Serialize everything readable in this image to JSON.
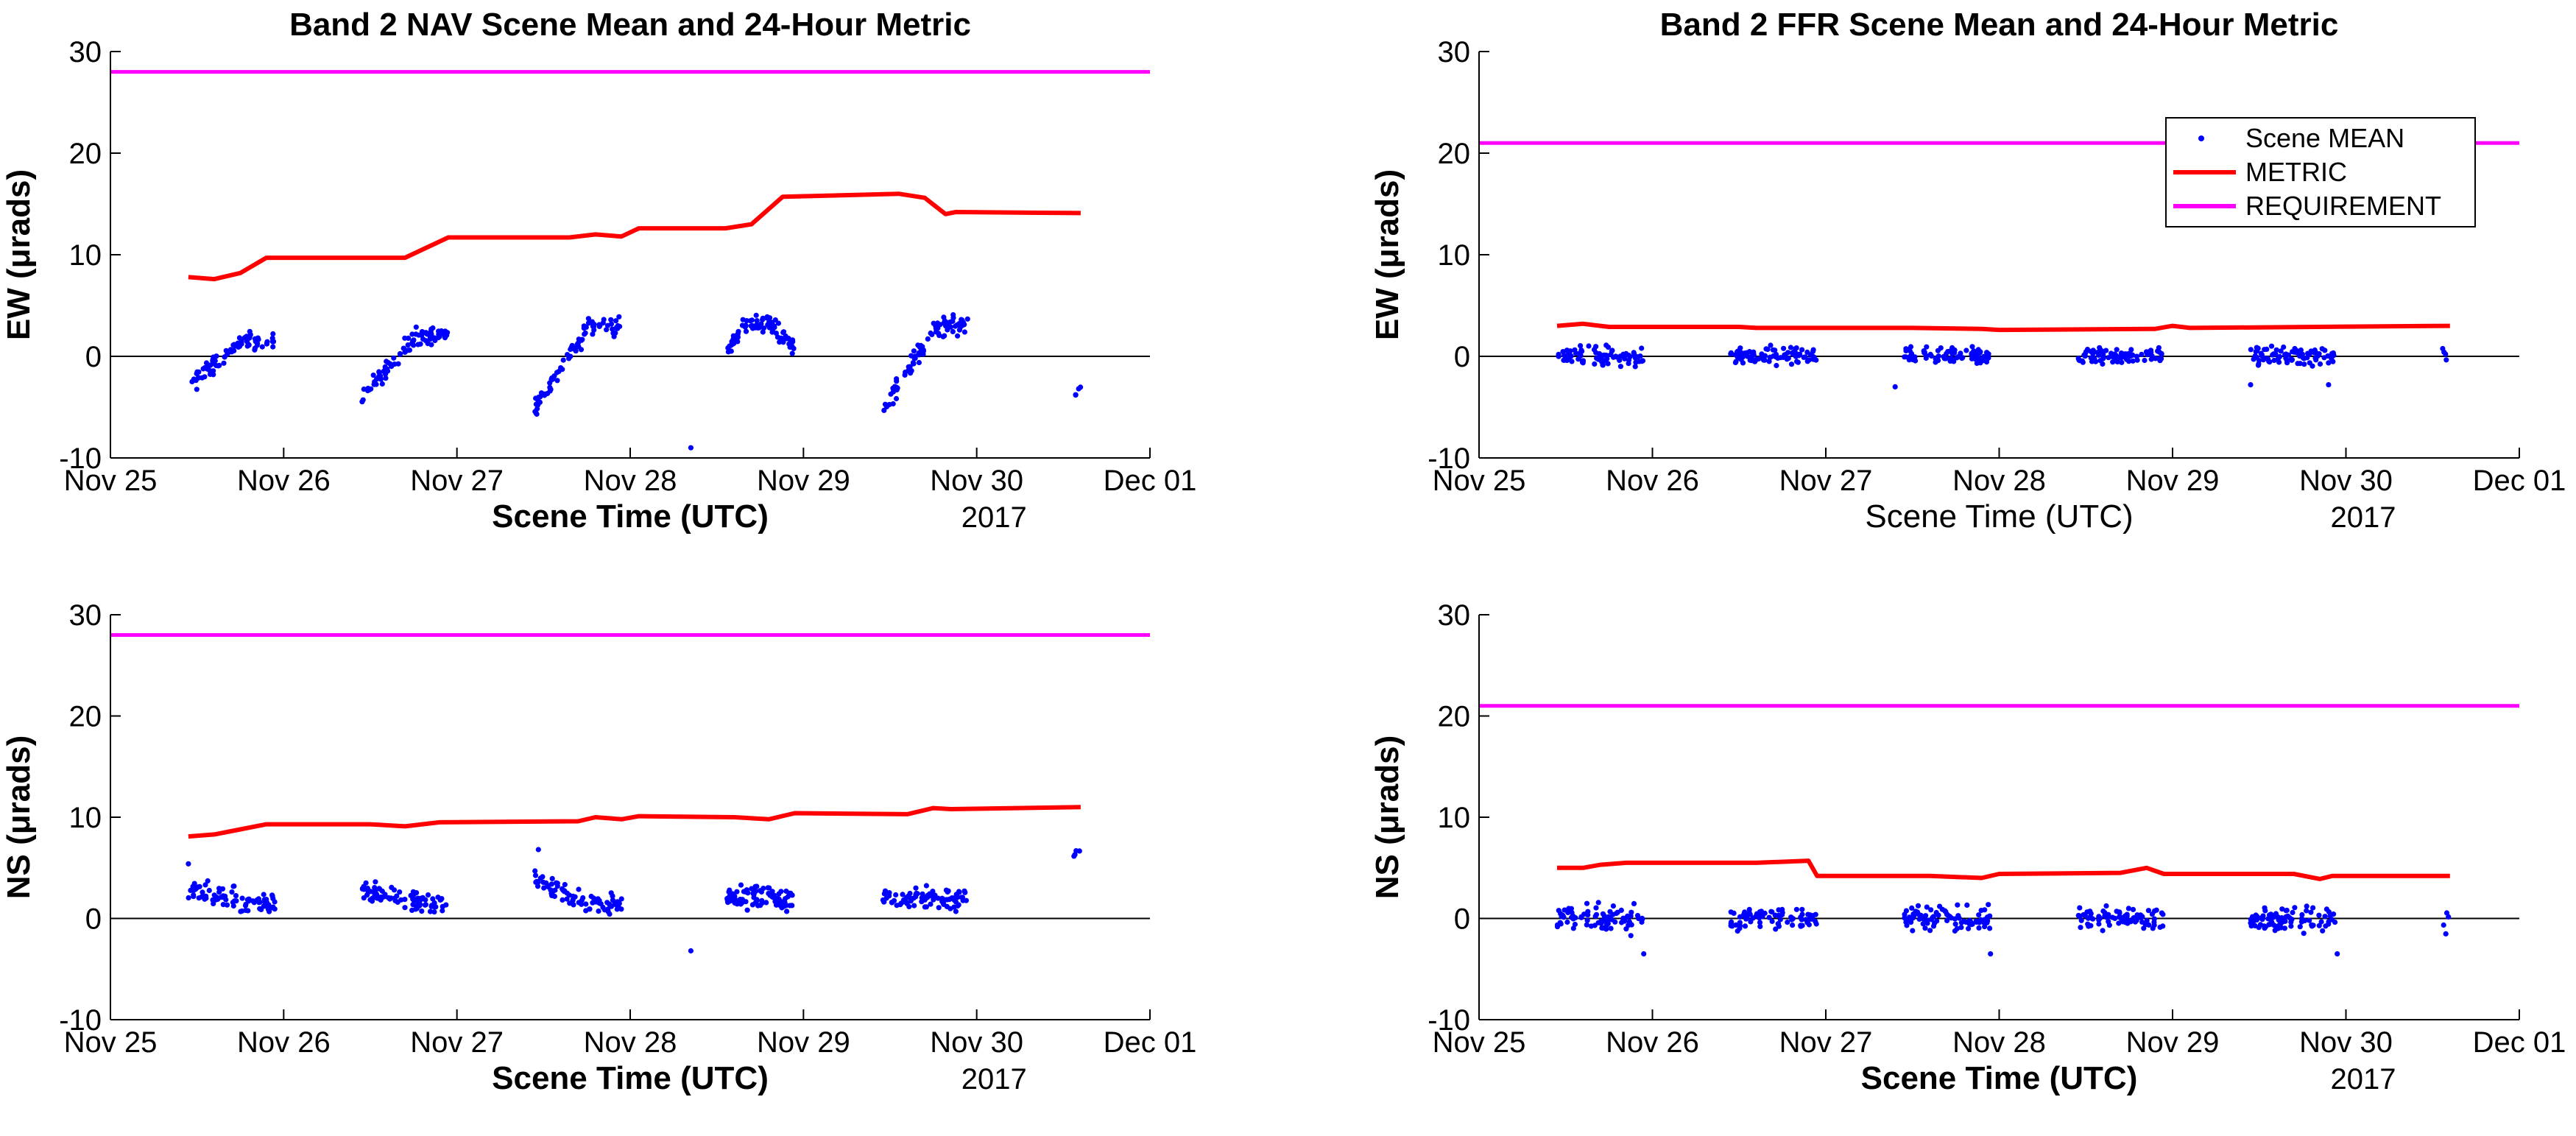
{
  "colors": {
    "mean": "#0000ff",
    "metric": "#ff0000",
    "requirement": "#ff00ff",
    "axis": "#000000"
  },
  "chart_data": [
    {
      "id": "nav-ew",
      "type": "line",
      "title": "Band 2 NAV Scene Mean and 24-Hour Metric",
      "xlabel": "Scene Time (UTC)",
      "xlabel_bold": true,
      "ylabel": "EW (μrads)",
      "year_label": "2017",
      "x_ticks": [
        "Nov 25",
        "Nov 26",
        "Nov 27",
        "Nov 28",
        "Nov 29",
        "Nov 30",
        "Dec 01"
      ],
      "xlim_days": [
        0,
        6
      ],
      "ylim": [
        -10,
        30
      ],
      "y_ticks": [
        -10,
        0,
        10,
        20,
        30
      ],
      "requirement": 28,
      "metric": [
        [
          0.45,
          7.8
        ],
        [
          0.6,
          7.6
        ],
        [
          0.75,
          8.2
        ],
        [
          0.9,
          9.7
        ],
        [
          1.7,
          9.7
        ],
        [
          1.95,
          11.7
        ],
        [
          2.65,
          11.7
        ],
        [
          2.8,
          12.0
        ],
        [
          2.95,
          11.8
        ],
        [
          3.05,
          12.6
        ],
        [
          3.55,
          12.6
        ],
        [
          3.7,
          13.0
        ],
        [
          3.88,
          15.7
        ],
        [
          4.55,
          16.0
        ],
        [
          4.7,
          15.6
        ],
        [
          4.82,
          14.0
        ],
        [
          4.88,
          14.2
        ],
        [
          5.6,
          14.1
        ]
      ],
      "scene_clusters": [
        {
          "start": 0.45,
          "end": 0.95,
          "y0": -3.0,
          "y1": 1.5,
          "mode": "rise",
          "spread": 0.9
        },
        {
          "start": 1.45,
          "end": 1.95,
          "y0": -4.0,
          "y1": 2.0,
          "mode": "rise",
          "spread": 0.9
        },
        {
          "start": 2.45,
          "end": 2.95,
          "y0": -5.0,
          "y1": 3.0,
          "mode": "rise",
          "spread": 1.0
        },
        {
          "start": 3.55,
          "end": 3.95,
          "y0": 0.5,
          "y1": 3.0,
          "mode": "hump",
          "spread": 0.9
        },
        {
          "start": 4.45,
          "end": 4.95,
          "y0": -5.5,
          "y1": 3.0,
          "mode": "rise",
          "spread": 1.0
        },
        {
          "start": 5.56,
          "end": 5.6,
          "y0": -4.0,
          "y1": -3.0,
          "mode": "flat",
          "spread": 0.4
        }
      ],
      "scene_outliers": [
        [
          3.35,
          -9.0
        ]
      ],
      "legend": null
    },
    {
      "id": "ffr-ew",
      "type": "line",
      "title": "Band 2 FFR Scene Mean and 24-Hour Metric",
      "xlabel": "Scene Time (UTC)",
      "xlabel_bold": false,
      "ylabel": "EW (μrads)",
      "year_label": "2017",
      "x_ticks": [
        "Nov 25",
        "Nov 26",
        "Nov 27",
        "Nov 28",
        "Nov 29",
        "Nov 30",
        "Dec 01"
      ],
      "xlim_days": [
        0,
        6
      ],
      "ylim": [
        -10,
        30
      ],
      "y_ticks": [
        -10,
        0,
        10,
        20,
        30
      ],
      "requirement": 21,
      "metric": [
        [
          0.45,
          3.0
        ],
        [
          0.6,
          3.2
        ],
        [
          0.75,
          2.9
        ],
        [
          1.5,
          2.9
        ],
        [
          1.6,
          2.8
        ],
        [
          2.5,
          2.8
        ],
        [
          2.9,
          2.7
        ],
        [
          3.0,
          2.6
        ],
        [
          3.9,
          2.7
        ],
        [
          4.0,
          3.0
        ],
        [
          4.1,
          2.8
        ],
        [
          5.6,
          3.0
        ]
      ],
      "scene_clusters": [
        {
          "start": 0.45,
          "end": 0.95,
          "y0": 0,
          "y1": 0,
          "mode": "flat",
          "spread": 1.0
        },
        {
          "start": 1.45,
          "end": 1.95,
          "y0": 0,
          "y1": 0,
          "mode": "flat",
          "spread": 0.9
        },
        {
          "start": 2.45,
          "end": 2.95,
          "y0": 0,
          "y1": 0,
          "mode": "flat",
          "spread": 0.9
        },
        {
          "start": 3.45,
          "end": 3.95,
          "y0": 0,
          "y1": 0,
          "mode": "flat",
          "spread": 0.9
        },
        {
          "start": 4.45,
          "end": 4.95,
          "y0": 0,
          "y1": 0,
          "mode": "flat",
          "spread": 1.0
        },
        {
          "start": 5.55,
          "end": 5.6,
          "y0": 0,
          "y1": 0,
          "mode": "flat",
          "spread": 1.2
        }
      ],
      "scene_outliers": [
        [
          2.4,
          -3.0
        ],
        [
          4.45,
          -2.8
        ],
        [
          4.9,
          -2.8
        ]
      ],
      "legend": {
        "position": "top-right",
        "entries": [
          "Scene MEAN",
          "METRIC",
          "REQUIREMENT"
        ]
      }
    },
    {
      "id": "nav-ns",
      "type": "line",
      "title": "",
      "xlabel": "Scene Time (UTC)",
      "xlabel_bold": true,
      "ylabel": "NS (μrads)",
      "year_label": "2017",
      "x_ticks": [
        "Nov 25",
        "Nov 26",
        "Nov 27",
        "Nov 28",
        "Nov 29",
        "Nov 30",
        "Dec 01"
      ],
      "xlim_days": [
        0,
        6
      ],
      "ylim": [
        -10,
        30
      ],
      "y_ticks": [
        -10,
        0,
        10,
        20,
        30
      ],
      "requirement": 28,
      "metric": [
        [
          0.45,
          8.1
        ],
        [
          0.6,
          8.3
        ],
        [
          0.75,
          8.8
        ],
        [
          0.9,
          9.3
        ],
        [
          1.5,
          9.3
        ],
        [
          1.7,
          9.1
        ],
        [
          1.9,
          9.5
        ],
        [
          2.7,
          9.6
        ],
        [
          2.8,
          10.0
        ],
        [
          2.95,
          9.8
        ],
        [
          3.05,
          10.1
        ],
        [
          3.6,
          10.0
        ],
        [
          3.8,
          9.8
        ],
        [
          3.95,
          10.4
        ],
        [
          4.6,
          10.3
        ],
        [
          4.75,
          10.9
        ],
        [
          4.85,
          10.8
        ],
        [
          5.6,
          11.0
        ]
      ],
      "scene_clusters": [
        {
          "start": 0.45,
          "end": 0.95,
          "y0": 3.0,
          "y1": 1.5,
          "mode": "fall",
          "spread": 1.2
        },
        {
          "start": 1.45,
          "end": 1.95,
          "y0": 3.0,
          "y1": 1.5,
          "mode": "fall",
          "spread": 1.0
        },
        {
          "start": 2.45,
          "end": 2.95,
          "y0": 4.0,
          "y1": 1.5,
          "mode": "fall",
          "spread": 1.2
        },
        {
          "start": 3.55,
          "end": 3.95,
          "y0": 2.0,
          "y1": 2.0,
          "mode": "flat",
          "spread": 1.3
        },
        {
          "start": 4.45,
          "end": 4.95,
          "y0": 2.0,
          "y1": 2.0,
          "mode": "flat",
          "spread": 1.2
        },
        {
          "start": 5.56,
          "end": 5.6,
          "y0": 6.0,
          "y1": 7.0,
          "mode": "flat",
          "spread": 0.5
        }
      ],
      "scene_outliers": [
        [
          3.35,
          -3.2
        ],
        [
          2.47,
          6.8
        ],
        [
          0.45,
          5.4
        ]
      ],
      "legend": null
    },
    {
      "id": "ffr-ns",
      "type": "line",
      "title": "",
      "xlabel": "Scene Time (UTC)",
      "xlabel_bold": true,
      "ylabel": "NS (μrads)",
      "year_label": "2017",
      "x_ticks": [
        "Nov 25",
        "Nov 26",
        "Nov 27",
        "Nov 28",
        "Nov 29",
        "Nov 30",
        "Dec 01"
      ],
      "xlim_days": [
        0,
        6
      ],
      "ylim": [
        -10,
        30
      ],
      "y_ticks": [
        -10,
        0,
        10,
        20,
        30
      ],
      "requirement": 21,
      "metric": [
        [
          0.45,
          5.0
        ],
        [
          0.6,
          5.0
        ],
        [
          0.7,
          5.3
        ],
        [
          0.85,
          5.5
        ],
        [
          1.6,
          5.5
        ],
        [
          1.9,
          5.7
        ],
        [
          1.95,
          4.2
        ],
        [
          2.6,
          4.2
        ],
        [
          2.9,
          4.0
        ],
        [
          3.0,
          4.4
        ],
        [
          3.7,
          4.5
        ],
        [
          3.85,
          5.0
        ],
        [
          3.95,
          4.4
        ],
        [
          4.7,
          4.4
        ],
        [
          4.85,
          3.9
        ],
        [
          4.92,
          4.2
        ],
        [
          5.6,
          4.2
        ]
      ],
      "scene_clusters": [
        {
          "start": 0.45,
          "end": 0.95,
          "y0": 0,
          "y1": 0,
          "mode": "flat",
          "spread": 1.4
        },
        {
          "start": 1.45,
          "end": 1.95,
          "y0": 0,
          "y1": 0,
          "mode": "flat",
          "spread": 1.2
        },
        {
          "start": 2.45,
          "end": 2.95,
          "y0": 0,
          "y1": 0,
          "mode": "flat",
          "spread": 1.2
        },
        {
          "start": 3.45,
          "end": 3.95,
          "y0": 0,
          "y1": 0,
          "mode": "flat",
          "spread": 1.2
        },
        {
          "start": 4.45,
          "end": 4.95,
          "y0": 0,
          "y1": 0,
          "mode": "flat",
          "spread": 1.2
        },
        {
          "start": 5.55,
          "end": 5.6,
          "y0": 0,
          "y1": 0,
          "mode": "flat",
          "spread": 1.6
        }
      ],
      "scene_outliers": [
        [
          0.95,
          -3.5
        ],
        [
          2.95,
          -3.5
        ],
        [
          4.95,
          -3.5
        ]
      ],
      "legend": null
    }
  ]
}
